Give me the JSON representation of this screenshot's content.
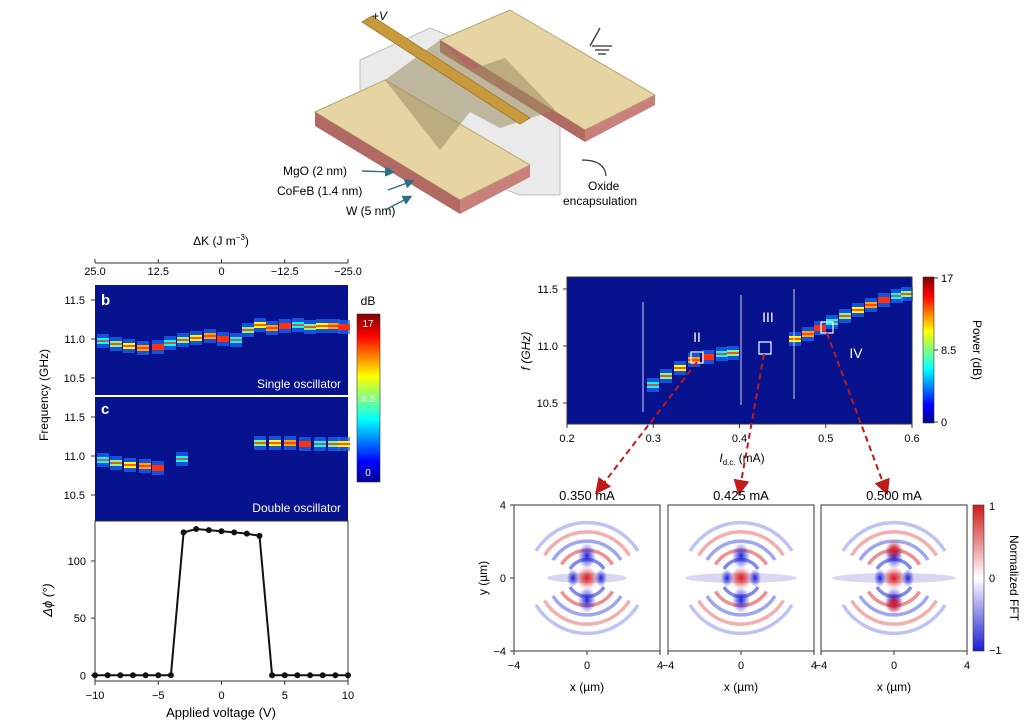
{
  "device": {
    "voltage_label": "+V",
    "layers": [
      "MgO (2 nm)",
      "CoFeB (1.4 nm)",
      "W (5 nm)"
    ],
    "oxide_label_1": "Oxide",
    "oxide_label_2": "encapsulation"
  },
  "panel_b": {
    "letter": "b",
    "caption": "Single oscillator",
    "top_axis_label": "ΔK (J m",
    "top_axis_exp": "−3",
    "top_axis_close": ")",
    "top_ticks": [
      "25.0",
      "12.5",
      "0",
      "−12.5",
      "−25.0"
    ],
    "y_ticks": [
      "11.5",
      "11.0",
      "10.5"
    ],
    "colorbar_unit": "dB",
    "colorbar_ticks": [
      "17",
      "8.5",
      "0"
    ]
  },
  "panel_c": {
    "letter": "c",
    "caption": "Double oscillator",
    "y_ticks": [
      "11.5",
      "11.0",
      "10.5"
    ]
  },
  "shared_freq_label": "Frequency (GHz)",
  "chart_data": [
    {
      "type": "line",
      "title": "",
      "xlabel": "Applied voltage (V)",
      "ylabel": "Δϕ (°)",
      "x_ticks": [
        "−10",
        "−5",
        "0",
        "5",
        "10"
      ],
      "y_ticks": [
        "0",
        "50",
        "100"
      ],
      "xlim": [
        -10,
        10
      ],
      "ylim": [
        -5,
        135
      ],
      "x": [
        -10,
        -9,
        -8,
        -7,
        -6,
        -5,
        -4,
        -3,
        -2,
        -1,
        0,
        1,
        2,
        3,
        4,
        5,
        6,
        7,
        8,
        9,
        10
      ],
      "y": [
        0,
        0,
        0,
        0,
        0,
        0,
        0,
        125,
        128,
        127,
        126,
        125,
        124,
        122,
        0,
        0,
        0,
        0,
        0,
        0,
        0
      ]
    },
    {
      "type": "heatmap",
      "xlabel_main": "I",
      "xlabel_sub": "d.c.",
      "xlabel_unit": "(mA)",
      "ylabel": "f (GHz)",
      "x_ticks": [
        "0.2",
        "0.3",
        "0.4",
        "0.5",
        "0.6"
      ],
      "y_ticks": [
        "11.5",
        "11.0",
        "10.5"
      ],
      "xlim": [
        0.2,
        0.6
      ],
      "regions": [
        "II",
        "III",
        "IV"
      ],
      "colorbar_label": "Power (dB)",
      "colorbar_ticks": [
        "17",
        "8.5",
        "0"
      ],
      "highlighted_currents_mA": [
        0.35,
        0.425,
        0.5
      ]
    }
  ],
  "maps": {
    "titles": [
      "0.350 mA",
      "0.425 mA",
      "0.500 mA"
    ],
    "y_axis": "y (µm)",
    "x_axis": "x (µm)",
    "ticks": [
      "−4",
      "0",
      "4"
    ],
    "colorbar_label": "Normalized FFT",
    "colorbar_ticks": [
      "1",
      "0",
      "−1"
    ]
  },
  "colors": {
    "heatmap_bg": "#06128e",
    "gold": "#e6d4a2",
    "wire": "#c99a3c",
    "substrate": "#c8807a",
    "marker_red": "#c01a1a",
    "arrow_teal": "#2a6f86"
  }
}
